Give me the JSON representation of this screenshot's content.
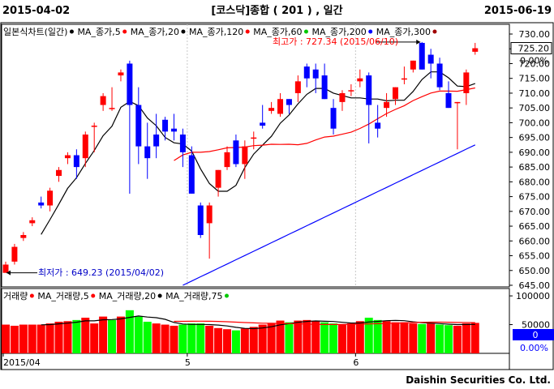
{
  "header": {
    "date_from": "2015-04-02",
    "title": "[코스닥]종합  ( 201 ) , 일간",
    "date_to": "2015-06-19"
  },
  "price_panel": {
    "legend": [
      {
        "label": "일본식차트(일간)",
        "color": "#000000"
      },
      {
        "label": "MA_종가,5",
        "color": "#ff0000"
      },
      {
        "label": "MA_종가,20",
        "color": "#000000"
      },
      {
        "label": "MA_종가,120",
        "color": "#ff0000"
      },
      {
        "label": "MA_종가,60",
        "color": "#00c800"
      },
      {
        "label": "MA_종가,200",
        "color": "#0000ff"
      },
      {
        "label": "MA_종가,300",
        "color": "#a00000"
      }
    ],
    "high_label": "최고가 : 727.34 (2015/06/10)",
    "low_label": "최저가 : 649.23 (2015/04/02)",
    "last_price": "725.20",
    "last_change": "0.00%"
  },
  "volume_panel": {
    "legend": [
      {
        "label": "거래량",
        "color": "#ff0000"
      },
      {
        "label": "MA_거래량,5",
        "color": "#ff0000"
      },
      {
        "label": "MA_거래량,20",
        "color": "#000000"
      },
      {
        "label": "MA_거래량,75",
        "color": "#00c800"
      }
    ],
    "last_volume": "0",
    "last_change": "0.00%"
  },
  "x_labels": [
    "2015/04",
    "5",
    "6"
  ],
  "footer": "Daishin Securities Co. Ltd.",
  "chart_data": {
    "type": "candlestick",
    "price_axis": {
      "min": 645,
      "max": 730,
      "ticks": [
        645,
        650,
        655,
        660,
        665,
        670,
        675,
        680,
        685,
        690,
        695,
        700,
        705,
        710,
        715,
        720,
        725,
        730
      ]
    },
    "volume_axis": {
      "ticks": [
        "50000",
        "100000"
      ]
    },
    "candles": [
      {
        "o": 649.2,
        "h": 653,
        "l": 649.2,
        "c": 652,
        "v": 50000
      },
      {
        "o": 653,
        "h": 659,
        "l": 652,
        "c": 658,
        "v": 48000
      },
      {
        "o": 661,
        "h": 663,
        "l": 660,
        "c": 662,
        "v": 50000
      },
      {
        "o": 666,
        "h": 668,
        "l": 665,
        "c": 667,
        "v": 50000
      },
      {
        "o": 673,
        "h": 675,
        "l": 671,
        "c": 672,
        "v": 50000
      },
      {
        "o": 672,
        "h": 678,
        "l": 670,
        "c": 677,
        "v": 52000
      },
      {
        "o": 682,
        "h": 685,
        "l": 680,
        "c": 684,
        "v": 55000
      },
      {
        "o": 688,
        "h": 690,
        "l": 686,
        "c": 689,
        "v": 56000
      },
      {
        "o": 689,
        "h": 691,
        "l": 681,
        "c": 685,
        "v": 58000
      },
      {
        "o": 688,
        "h": 697,
        "l": 685,
        "c": 696,
        "v": 62000
      },
      {
        "o": 699,
        "h": 700,
        "l": 690,
        "c": 699,
        "v": 52000
      },
      {
        "o": 706,
        "h": 710,
        "l": 704,
        "c": 709,
        "v": 64000
      },
      {
        "o": 705,
        "h": 712,
        "l": 704,
        "c": 705,
        "v": 58000
      },
      {
        "o": 716,
        "h": 718,
        "l": 714,
        "c": 717,
        "v": 64000
      },
      {
        "o": 720,
        "h": 721,
        "l": 676,
        "c": 706,
        "v": 75000
      },
      {
        "o": 706,
        "h": 712,
        "l": 686,
        "c": 692,
        "v": 64000
      },
      {
        "o": 692,
        "h": 700,
        "l": 681,
        "c": 688,
        "v": 55000
      },
      {
        "o": 696,
        "h": 703,
        "l": 688,
        "c": 692,
        "v": 52000
      },
      {
        "o": 701,
        "h": 702,
        "l": 694,
        "c": 697,
        "v": 50000
      },
      {
        "o": 698,
        "h": 703,
        "l": 694,
        "c": 697,
        "v": 48000
      },
      {
        "o": 696,
        "h": 698,
        "l": 685,
        "c": 690,
        "v": 50000
      },
      {
        "o": 689,
        "h": 692,
        "l": 676,
        "c": 676,
        "v": 52000
      },
      {
        "o": 672,
        "h": 673,
        "l": 661,
        "c": 662,
        "v": 52000
      },
      {
        "o": 666,
        "h": 673,
        "l": 654,
        "c": 672,
        "v": 48000
      },
      {
        "o": 678,
        "h": 684,
        "l": 675,
        "c": 684,
        "v": 44000
      },
      {
        "o": 685,
        "h": 692,
        "l": 684,
        "c": 690,
        "v": 42000
      },
      {
        "o": 694,
        "h": 696,
        "l": 685,
        "c": 686,
        "v": 40000
      },
      {
        "o": 686,
        "h": 694,
        "l": 681,
        "c": 692,
        "v": 43000
      },
      {
        "o": 695,
        "h": 697,
        "l": 691,
        "c": 695,
        "v": 46000
      },
      {
        "o": 700,
        "h": 706,
        "l": 698,
        "c": 699,
        "v": 50000
      },
      {
        "o": 704,
        "h": 707,
        "l": 703,
        "c": 705,
        "v": 52000
      },
      {
        "o": 703,
        "h": 710,
        "l": 702,
        "c": 708,
        "v": 57000
      },
      {
        "o": 708,
        "h": 708,
        "l": 703,
        "c": 706,
        "v": 54000
      },
      {
        "o": 710,
        "h": 716,
        "l": 707,
        "c": 714,
        "v": 57000
      },
      {
        "o": 719,
        "h": 720,
        "l": 712,
        "c": 715,
        "v": 58000
      },
      {
        "o": 718,
        "h": 720,
        "l": 710,
        "c": 715,
        "v": 56000
      },
      {
        "o": 716,
        "h": 720,
        "l": 708,
        "c": 708,
        "v": 54000
      },
      {
        "o": 705,
        "h": 708,
        "l": 696,
        "c": 698,
        "v": 52000
      },
      {
        "o": 707,
        "h": 711,
        "l": 704,
        "c": 710,
        "v": 50000
      },
      {
        "o": 711,
        "h": 713,
        "l": 709,
        "c": 711,
        "v": 52000
      },
      {
        "o": 714,
        "h": 718,
        "l": 712,
        "c": 715,
        "v": 56000
      },
      {
        "o": 716,
        "h": 717,
        "l": 693,
        "c": 706,
        "v": 62000
      },
      {
        "o": 700,
        "h": 706,
        "l": 695,
        "c": 698,
        "v": 58000
      },
      {
        "o": 705,
        "h": 710,
        "l": 702,
        "c": 707,
        "v": 56000
      },
      {
        "o": 708,
        "h": 712,
        "l": 706,
        "c": 712,
        "v": 54000
      },
      {
        "o": 715,
        "h": 719,
        "l": 713,
        "c": 715,
        "v": 54000
      },
      {
        "o": 718,
        "h": 721,
        "l": 717,
        "c": 721,
        "v": 52000
      },
      {
        "o": 727,
        "h": 727.3,
        "l": 718,
        "c": 718,
        "v": 51000
      },
      {
        "o": 723,
        "h": 725,
        "l": 715,
        "c": 720,
        "v": 52000
      },
      {
        "o": 720,
        "h": 722,
        "l": 711,
        "c": 712,
        "v": 50000
      },
      {
        "o": 710,
        "h": 714,
        "l": 705,
        "c": 705,
        "v": 49000
      },
      {
        "o": 707,
        "h": 707,
        "l": 691,
        "c": 707,
        "v": 48000
      },
      {
        "o": 710,
        "h": 718,
        "l": 706,
        "c": 717,
        "v": 52000
      },
      {
        "o": 724,
        "h": 727,
        "l": 723,
        "c": 725.2,
        "v": 53000
      }
    ]
  }
}
